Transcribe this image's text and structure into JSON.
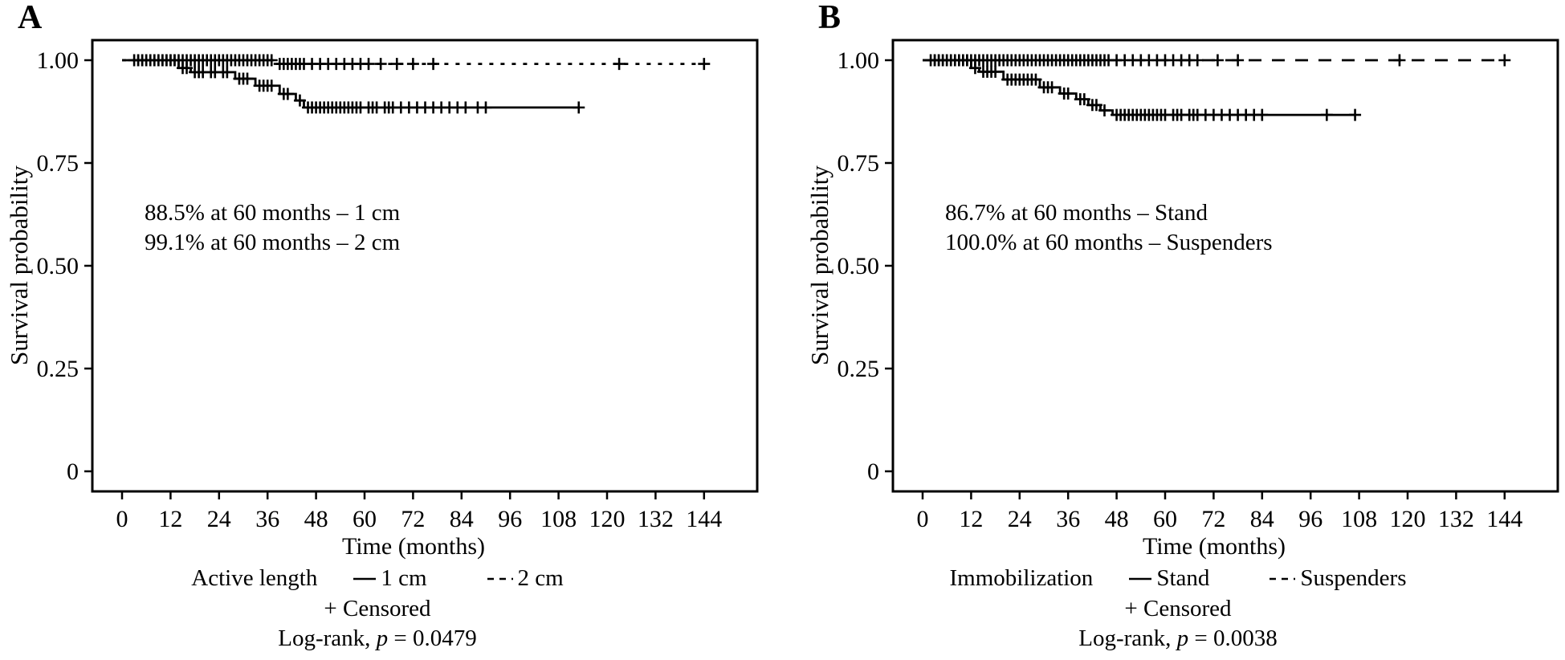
{
  "figure": {
    "background": "#ffffff",
    "ink_color": "#000000",
    "panels": [
      {
        "label": "A",
        "y_axis_title": "Survival probability",
        "x_axis_title": "Time (months)",
        "annotation_lines": [
          "88.5% at 60 months – 1 cm",
          "99.1% at 60 months – 2 cm"
        ],
        "legend": {
          "group_label": "Active length",
          "series": [
            {
              "label": "1 cm",
              "line_style": "solid"
            },
            {
              "label": "2 cm",
              "line_style": "short-dash"
            }
          ],
          "censored_label": "+ Censored"
        },
        "logrank": {
          "prefix": "Log-rank, ",
          "p_symbol": "p",
          "value": " = 0.0479"
        }
      },
      {
        "label": "B",
        "y_axis_title": "Survival probability",
        "x_axis_title": "Time (months)",
        "annotation_lines": [
          "86.7% at 60 months – Stand",
          "100.0% at 60 months – Suspenders"
        ],
        "legend": {
          "group_label": "Immobilization",
          "series": [
            {
              "label": "Stand",
              "line_style": "solid"
            },
            {
              "label": "Suspenders",
              "line_style": "long-dash"
            }
          ],
          "censored_label": "+ Censored"
        },
        "logrank": {
          "prefix": "Log-rank, ",
          "p_symbol": "p",
          "value": " = 0.0038"
        }
      }
    ]
  },
  "chart_data": [
    {
      "type": "line",
      "subtype": "kaplan_meier_step",
      "title": "",
      "xlabel": "Time (months)",
      "ylabel": "Survival probability",
      "xlim": [
        0,
        157
      ],
      "ylim": [
        0,
        1.05
      ],
      "x_ticks": [
        0,
        12,
        24,
        36,
        48,
        60,
        72,
        84,
        96,
        108,
        120,
        132,
        144
      ],
      "y_ticks": [
        {
          "value": 1.0,
          "label": "1.00"
        },
        {
          "value": 0.75,
          "label": "0.75"
        },
        {
          "value": 0.5,
          "label": "0.50"
        },
        {
          "value": 0.25,
          "label": "0.25"
        },
        {
          "value": 0.0,
          "label": "0"
        }
      ],
      "grid": false,
      "legend_title": "Active length",
      "log_rank_p": 0.0479,
      "annotations": [
        "88.5% at 60 months – 1 cm",
        "99.1% at 60 months – 2 cm"
      ],
      "survival_at_60_months": {
        "1 cm": 0.885,
        "2 cm": 0.991
      },
      "series": [
        {
          "name": "1 cm",
          "line_style": "solid",
          "start_value": 1.0,
          "steps": [
            [
              14,
              0.981
            ],
            [
              17,
              0.971
            ],
            [
              28,
              0.955
            ],
            [
              33,
              0.938
            ],
            [
              39,
              0.918
            ],
            [
              43,
              0.902
            ],
            [
              45,
              0.885
            ]
          ],
          "end_time": 113,
          "censor_times": [
            4,
            5,
            6,
            7,
            8,
            9,
            10,
            11,
            12,
            13,
            15,
            16,
            18,
            19,
            20,
            22,
            23,
            25,
            26,
            29,
            30,
            31,
            34,
            35,
            36,
            37,
            40,
            41,
            44,
            46,
            47,
            48,
            49,
            50,
            51,
            52,
            53,
            54,
            55,
            56,
            57,
            58,
            59,
            61,
            62,
            63,
            65,
            66,
            67,
            69,
            71,
            73,
            75,
            77,
            79,
            81,
            83,
            85,
            88,
            90,
            113
          ]
        },
        {
          "name": "2 cm",
          "line_style": "short-dash",
          "start_value": 1.0,
          "steps": [
            [
              38,
              0.991
            ]
          ],
          "end_time": 144,
          "censor_times": [
            3,
            4,
            5,
            6,
            7,
            8,
            9,
            10,
            11,
            12,
            13,
            14,
            15,
            16,
            17,
            18,
            19,
            20,
            21,
            22,
            23,
            24,
            25,
            26,
            27,
            28,
            29,
            30,
            31,
            32,
            33,
            34,
            35,
            36,
            37,
            39,
            40,
            41,
            42,
            43,
            44,
            45,
            47,
            49,
            51,
            53,
            55,
            57,
            59,
            61,
            64,
            68,
            72,
            77,
            123,
            144
          ]
        }
      ]
    },
    {
      "type": "line",
      "subtype": "kaplan_meier_step",
      "title": "",
      "xlabel": "Time (months)",
      "ylabel": "Survival probability",
      "xlim": [
        0,
        157
      ],
      "ylim": [
        0,
        1.05
      ],
      "x_ticks": [
        0,
        12,
        24,
        36,
        48,
        60,
        72,
        84,
        96,
        108,
        120,
        132,
        144
      ],
      "y_ticks": [
        {
          "value": 1.0,
          "label": "1.00"
        },
        {
          "value": 0.75,
          "label": "0.75"
        },
        {
          "value": 0.5,
          "label": "0.50"
        },
        {
          "value": 0.25,
          "label": "0.25"
        },
        {
          "value": 0.0,
          "label": "0"
        }
      ],
      "grid": false,
      "legend_title": "Immobilization",
      "log_rank_p": 0.0038,
      "annotations": [
        "86.7% at 60 months – Stand",
        "100.0% at 60 months – Suspenders"
      ],
      "survival_at_60_months": {
        "Stand": 0.867,
        "Suspenders": 1.0
      },
      "series": [
        {
          "name": "Stand",
          "line_style": "solid",
          "start_value": 1.0,
          "steps": [
            [
              12,
              0.981
            ],
            [
              14,
              0.972
            ],
            [
              20,
              0.953
            ],
            [
              29,
              0.934
            ],
            [
              34,
              0.919
            ],
            [
              38,
              0.905
            ],
            [
              41,
              0.891
            ],
            [
              44,
              0.878
            ],
            [
              47,
              0.867
            ]
          ],
          "end_time": 107,
          "censor_times": [
            3,
            4,
            5,
            6,
            7,
            8,
            9,
            10,
            11,
            13,
            15,
            16,
            17,
            18,
            21,
            22,
            23,
            24,
            25,
            26,
            27,
            28,
            30,
            31,
            32,
            35,
            36,
            39,
            40,
            42,
            43,
            45,
            48,
            49,
            50,
            51,
            52,
            53,
            54,
            55,
            56,
            57,
            58,
            59,
            60,
            62,
            63,
            64,
            66,
            67,
            68,
            70,
            72,
            74,
            76,
            78,
            80,
            82,
            84,
            100,
            107
          ]
        },
        {
          "name": "Suspenders",
          "line_style": "long-dash",
          "start_value": 1.0,
          "steps": [],
          "end_time": 144,
          "censor_times": [
            2,
            3,
            4,
            5,
            6,
            7,
            8,
            9,
            10,
            11,
            12,
            13,
            14,
            15,
            16,
            17,
            18,
            19,
            20,
            21,
            22,
            23,
            24,
            25,
            26,
            27,
            28,
            29,
            30,
            31,
            32,
            33,
            34,
            35,
            36,
            37,
            38,
            39,
            40,
            41,
            42,
            43,
            44,
            45,
            46,
            48,
            50,
            52,
            54,
            56,
            58,
            60,
            62,
            64,
            66,
            68,
            73,
            78,
            118,
            144
          ]
        }
      ]
    }
  ]
}
